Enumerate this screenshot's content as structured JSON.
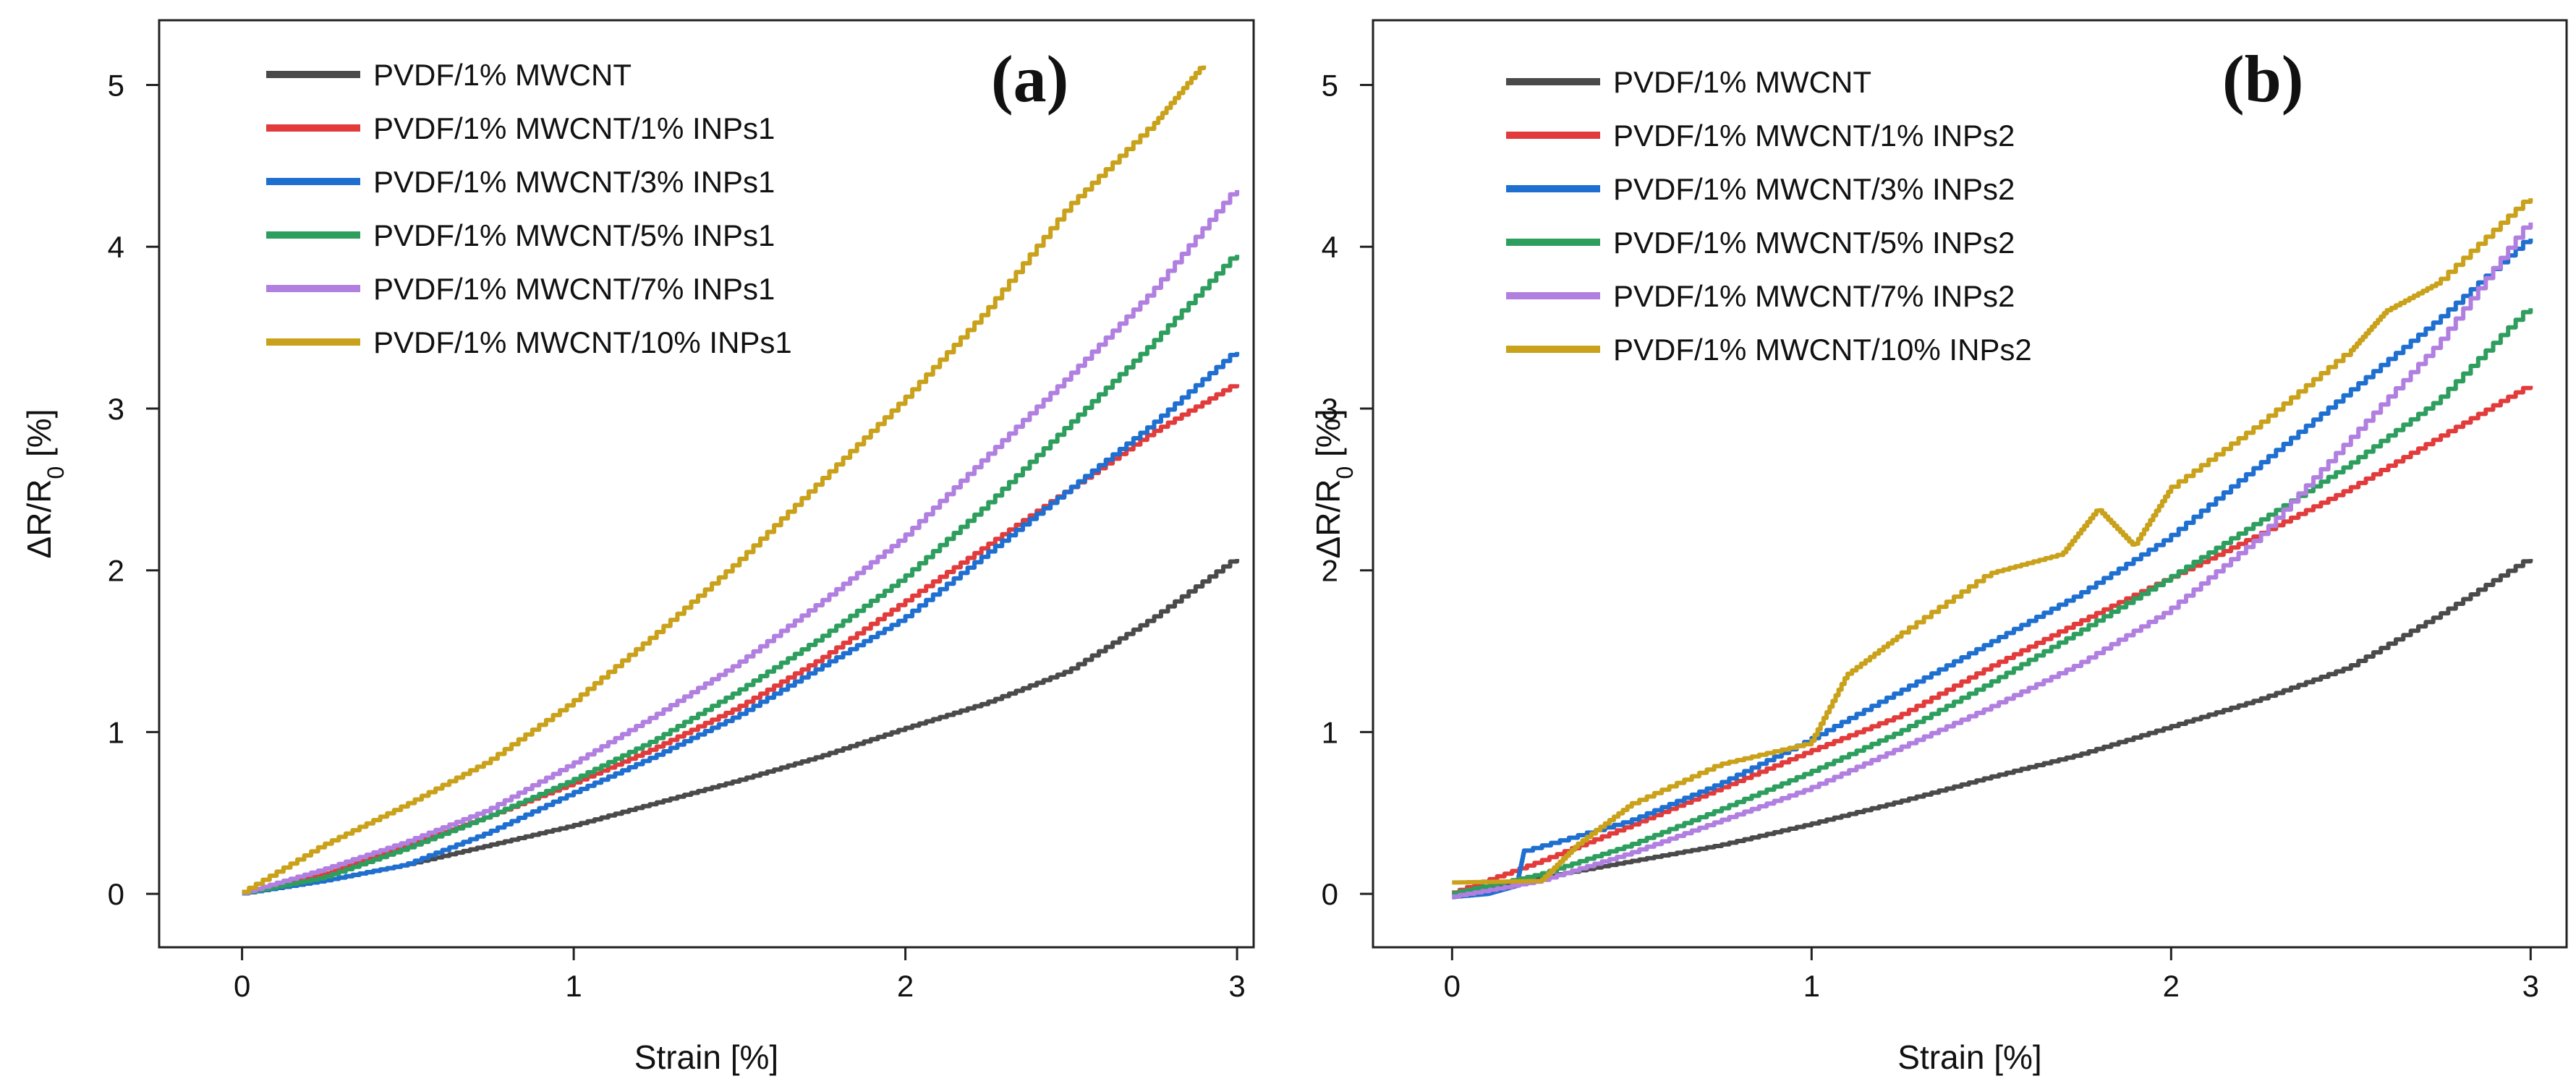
{
  "chart_data": [
    {
      "type": "line",
      "panel_label": "(a)",
      "xlabel": "Strain [%]",
      "ylabel_prefix": "ΔR/R",
      "ylabel_sub": "0",
      "ylabel_suffix": " [%]",
      "xlim": [
        -0.25,
        3.05
      ],
      "ylim": [
        -0.33,
        5.4
      ],
      "xticks": [
        0,
        1,
        2,
        3
      ],
      "yticks": [
        0,
        1,
        2,
        3,
        4,
        5
      ],
      "legend_position": "top-left",
      "series": [
        {
          "name": "PVDF/1% MWCNT",
          "color": "#4a4a4a",
          "x": [
            0,
            0.25,
            0.5,
            0.75,
            1.0,
            1.25,
            1.5,
            1.75,
            2.0,
            2.25,
            2.5,
            2.75,
            3.0
          ],
          "y": [
            0,
            0.08,
            0.18,
            0.3,
            0.42,
            0.56,
            0.7,
            0.85,
            1.02,
            1.18,
            1.38,
            1.7,
            2.07
          ]
        },
        {
          "name": "PVDF/1% MWCNT/1% INPs1",
          "color": "#e23b3b",
          "x": [
            0,
            0.25,
            0.5,
            0.75,
            1.0,
            1.25,
            1.5,
            1.75,
            2.0,
            2.25,
            2.5,
            2.75,
            3.0
          ],
          "y": [
            0,
            0.12,
            0.3,
            0.48,
            0.68,
            0.9,
            1.15,
            1.45,
            1.8,
            2.15,
            2.5,
            2.85,
            3.15
          ]
        },
        {
          "name": "PVDF/1% MWCNT/3% INPs1",
          "color": "#1f6fd0",
          "x": [
            0,
            0.25,
            0.5,
            0.75,
            1.0,
            1.25,
            1.5,
            1.75,
            2.0,
            2.25,
            2.5,
            2.75,
            3.0
          ],
          "y": [
            0,
            0.08,
            0.18,
            0.38,
            0.62,
            0.85,
            1.1,
            1.4,
            1.7,
            2.1,
            2.5,
            2.9,
            3.35
          ]
        },
        {
          "name": "PVDF/1% MWCNT/5% INPs1",
          "color": "#2e9e5e",
          "x": [
            0,
            0.25,
            0.5,
            0.75,
            1.0,
            1.25,
            1.5,
            1.75,
            2.0,
            2.25,
            2.5,
            2.75,
            3.0
          ],
          "y": [
            0,
            0.1,
            0.28,
            0.48,
            0.7,
            0.95,
            1.25,
            1.58,
            1.95,
            2.4,
            2.9,
            3.4,
            3.95
          ]
        },
        {
          "name": "PVDF/1% MWCNT/7% INPs1",
          "color": "#b07fe0",
          "x": [
            0,
            0.25,
            0.5,
            0.75,
            1.0,
            1.25,
            1.5,
            1.75,
            2.0,
            2.25,
            2.5,
            2.75,
            3.0
          ],
          "y": [
            0,
            0.15,
            0.32,
            0.52,
            0.8,
            1.1,
            1.42,
            1.8,
            2.2,
            2.7,
            3.2,
            3.72,
            4.35
          ]
        },
        {
          "name": "PVDF/1% MWCNT/10% INPs1",
          "color": "#c9a11a",
          "x": [
            0,
            0.25,
            0.5,
            0.75,
            1.0,
            1.25,
            1.5,
            1.75,
            2.0,
            2.25,
            2.5,
            2.75,
            2.9
          ],
          "y": [
            0,
            0.3,
            0.55,
            0.82,
            1.18,
            1.6,
            2.05,
            2.55,
            3.05,
            3.6,
            4.25,
            4.75,
            5.12
          ]
        }
      ]
    },
    {
      "type": "line",
      "panel_label": "(b)",
      "xlabel": "Strain [%]",
      "ylabel_prefix": "ΔR/R",
      "ylabel_sub": "0",
      "ylabel_suffix": " [%]",
      "xlim": [
        -0.22,
        3.1
      ],
      "ylim": [
        -0.33,
        5.4
      ],
      "xticks": [
        0,
        1,
        2,
        3
      ],
      "yticks": [
        0,
        1,
        2,
        3,
        4,
        5
      ],
      "legend_position": "top-left",
      "series": [
        {
          "name": "PVDF/1% MWCNT",
          "color": "#4a4a4a",
          "x": [
            0,
            0.25,
            0.5,
            0.75,
            1.0,
            1.25,
            1.5,
            1.75,
            2.0,
            2.25,
            2.5,
            2.75,
            3.0
          ],
          "y": [
            0,
            0.1,
            0.2,
            0.3,
            0.43,
            0.57,
            0.72,
            0.86,
            1.03,
            1.2,
            1.4,
            1.72,
            2.07
          ]
        },
        {
          "name": "PVDF/1% MWCNT/1% INPs2",
          "color": "#e23b3b",
          "x": [
            0,
            0.25,
            0.5,
            0.75,
            1.0,
            1.25,
            1.5,
            1.75,
            2.0,
            2.25,
            2.5,
            2.75,
            3.0
          ],
          "y": [
            0,
            0.2,
            0.42,
            0.65,
            0.88,
            1.1,
            1.4,
            1.68,
            1.95,
            2.22,
            2.5,
            2.82,
            3.14
          ]
        },
        {
          "name": "PVDF/1% MWCNT/3% INPs2",
          "color": "#1f6fd0",
          "x": [
            0,
            0.1,
            0.18,
            0.2,
            0.5,
            0.75,
            1.0,
            1.25,
            1.5,
            1.75,
            2.0,
            2.25,
            2.5,
            2.75,
            3.0
          ],
          "y": [
            -0.02,
            0.0,
            0.05,
            0.26,
            0.45,
            0.68,
            0.95,
            1.25,
            1.55,
            1.85,
            2.2,
            2.65,
            3.1,
            3.55,
            4.05
          ]
        },
        {
          "name": "PVDF/1% MWCNT/5% INPs2",
          "color": "#2e9e5e",
          "x": [
            0,
            0.25,
            0.5,
            0.75,
            1.0,
            1.25,
            1.5,
            1.75,
            2.0,
            2.25,
            2.5,
            2.75,
            3.0
          ],
          "y": [
            0,
            0.12,
            0.3,
            0.52,
            0.75,
            1.0,
            1.3,
            1.62,
            1.95,
            2.3,
            2.65,
            3.05,
            3.62
          ]
        },
        {
          "name": "PVDF/1% MWCNT/7% INPs2",
          "color": "#b07fe0",
          "x": [
            0,
            0.25,
            0.5,
            0.75,
            1.0,
            1.25,
            1.5,
            1.75,
            2.0,
            2.25,
            2.5,
            2.75,
            3.0
          ],
          "y": [
            -0.02,
            0.08,
            0.25,
            0.45,
            0.65,
            0.9,
            1.15,
            1.42,
            1.75,
            2.2,
            2.8,
            3.4,
            4.15
          ]
        },
        {
          "name": "PVDF/1% MWCNT/10% INPs2",
          "color": "#c9a11a",
          "x": [
            0,
            0.25,
            0.35,
            0.5,
            0.75,
            1.0,
            1.1,
            1.25,
            1.5,
            1.7,
            1.8,
            1.9,
            2.0,
            2.25,
            2.5,
            2.6,
            2.75,
            3.0
          ],
          "y": [
            0.07,
            0.08,
            0.3,
            0.55,
            0.8,
            0.93,
            1.35,
            1.6,
            1.98,
            2.1,
            2.38,
            2.15,
            2.5,
            2.9,
            3.35,
            3.6,
            3.78,
            4.3
          ]
        }
      ]
    }
  ]
}
